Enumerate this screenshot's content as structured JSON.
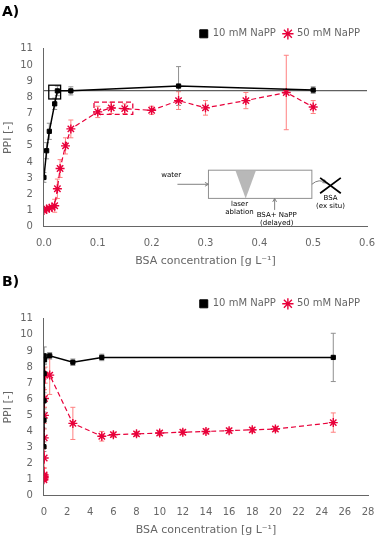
{
  "chart_data": [
    {
      "type": "line",
      "title": "A)",
      "xlabel": "BSA concentration [g L⁻¹]",
      "ylabel": "PPI [-]",
      "xlim": [
        0,
        0.6
      ],
      "xticks": [
        {
          "value": 0,
          "label": "0.0"
        },
        0.1,
        0.2,
        0.3,
        0.4,
        0.5,
        0.6
      ],
      "ylim": [
        0,
        11
      ],
      "yticks": [
        0,
        1,
        2,
        3,
        4,
        5,
        6,
        7,
        8,
        9,
        10,
        11
      ],
      "grid": false,
      "legend": "upper right",
      "series": [
        {
          "name": "10 mM NaPP",
          "color": "#000000",
          "error_color": "#909090",
          "marker": "square",
          "line_style": "solid",
          "x": [
            0.0,
            0.005,
            0.01,
            0.02,
            0.025,
            0.05,
            0.25,
            0.5
          ],
          "values": [
            3.05,
            4.7,
            5.9,
            7.6,
            8.4,
            8.4,
            8.7,
            8.45
          ],
          "errors": [
            0.3,
            0.5,
            0.5,
            0.35,
            0.3,
            0.25,
            1.2,
            0.2
          ]
        },
        {
          "name": "50 mM NaPP",
          "color": "#e8003a",
          "error_color": "#ff8080",
          "marker": "star",
          "line_style": "dashed",
          "x": [
            0.0,
            0.005,
            0.01,
            0.015,
            0.02,
            0.025,
            0.03,
            0.04,
            0.05,
            0.1,
            0.125,
            0.15,
            0.2,
            0.25,
            0.3,
            0.375,
            0.45,
            0.5
          ],
          "values": [
            1.0,
            1.1,
            1.15,
            1.2,
            1.3,
            2.35,
            3.6,
            5.0,
            6.05,
            7.1,
            7.35,
            7.3,
            7.2,
            7.8,
            7.35,
            7.8,
            8.3,
            7.4
          ],
          "errors": [
            0.05,
            0.1,
            0.05,
            0.05,
            0.4,
            0.6,
            0.55,
            0.5,
            0.55,
            0.35,
            0.35,
            0.3,
            0.25,
            0.55,
            0.45,
            0.5,
            2.3,
            0.4
          ]
        }
      ],
      "hlines": [
        {
          "y": 8.42,
          "color": "#606060"
        }
      ],
      "boxes": [
        {
          "x": 0.009,
          "y": 7.9,
          "width": 0.022,
          "height": 0.85,
          "color": "#000000",
          "line_style": "solid"
        },
        {
          "x": 0.093,
          "y": 6.95,
          "width": 0.072,
          "height": 0.75,
          "color": "#e8003a",
          "line_style": "dashed"
        }
      ],
      "annotations": [
        "water",
        "laser\nablation",
        "BSA+ NaPP\n(delayed)",
        "BSA\n(ex situ)"
      ]
    },
    {
      "type": "line",
      "title": "B)",
      "xlabel": "BSA concentration [g L⁻¹]",
      "ylabel": "PPI [-]",
      "xlim": [
        0,
        28
      ],
      "xticks": [
        0,
        2,
        4,
        6,
        8,
        10,
        12,
        14,
        16,
        18,
        20,
        22,
        24,
        26,
        28
      ],
      "ylim": [
        0,
        11
      ],
      "yticks": [
        0,
        1,
        2,
        3,
        4,
        5,
        6,
        7,
        8,
        9,
        10,
        11
      ],
      "grid": false,
      "legend": "upper right",
      "series": [
        {
          "name": "10 mM NaPP",
          "color": "#000000",
          "error_color": "#909090",
          "marker": "square",
          "line_style": "solid",
          "x": [
            0.0,
            0.005,
            0.01,
            0.02,
            0.025,
            0.05,
            0.5,
            2.5,
            5.0,
            25.0
          ],
          "values": [
            3.05,
            4.7,
            5.9,
            7.6,
            8.7,
            8.45,
            8.7,
            8.3,
            8.6,
            8.6
          ],
          "errors": [
            0.3,
            0.5,
            0.5,
            0.35,
            0.55,
            0.25,
            0.2,
            0.2,
            0.2,
            1.5
          ]
        },
        {
          "name": "50 mM NaPP",
          "color": "#e8003a",
          "error_color": "#ff8080",
          "marker": "star",
          "line_style": "dashed",
          "x": [
            0.0,
            0.005,
            0.01,
            0.015,
            0.02,
            0.025,
            0.03,
            0.04,
            0.05,
            0.1,
            0.5,
            2.5,
            5.0,
            6.0,
            8.0,
            10.0,
            12.0,
            14.0,
            16.0,
            18.0,
            20.0,
            25.0
          ],
          "values": [
            1.0,
            1.1,
            1.15,
            1.2,
            1.3,
            2.35,
            3.6,
            5.0,
            6.05,
            7.5,
            7.5,
            4.5,
            3.7,
            3.8,
            3.85,
            3.9,
            3.95,
            4.0,
            4.05,
            4.1,
            4.15,
            4.55
          ],
          "errors": [
            0.05,
            0.1,
            0.05,
            0.05,
            0.4,
            0.6,
            0.55,
            0.5,
            0.55,
            0.5,
            1.2,
            1.0,
            0.3,
            0.15,
            0.15,
            0.15,
            0.15,
            0.15,
            0.15,
            0.15,
            0.15,
            0.6
          ]
        }
      ]
    }
  ]
}
